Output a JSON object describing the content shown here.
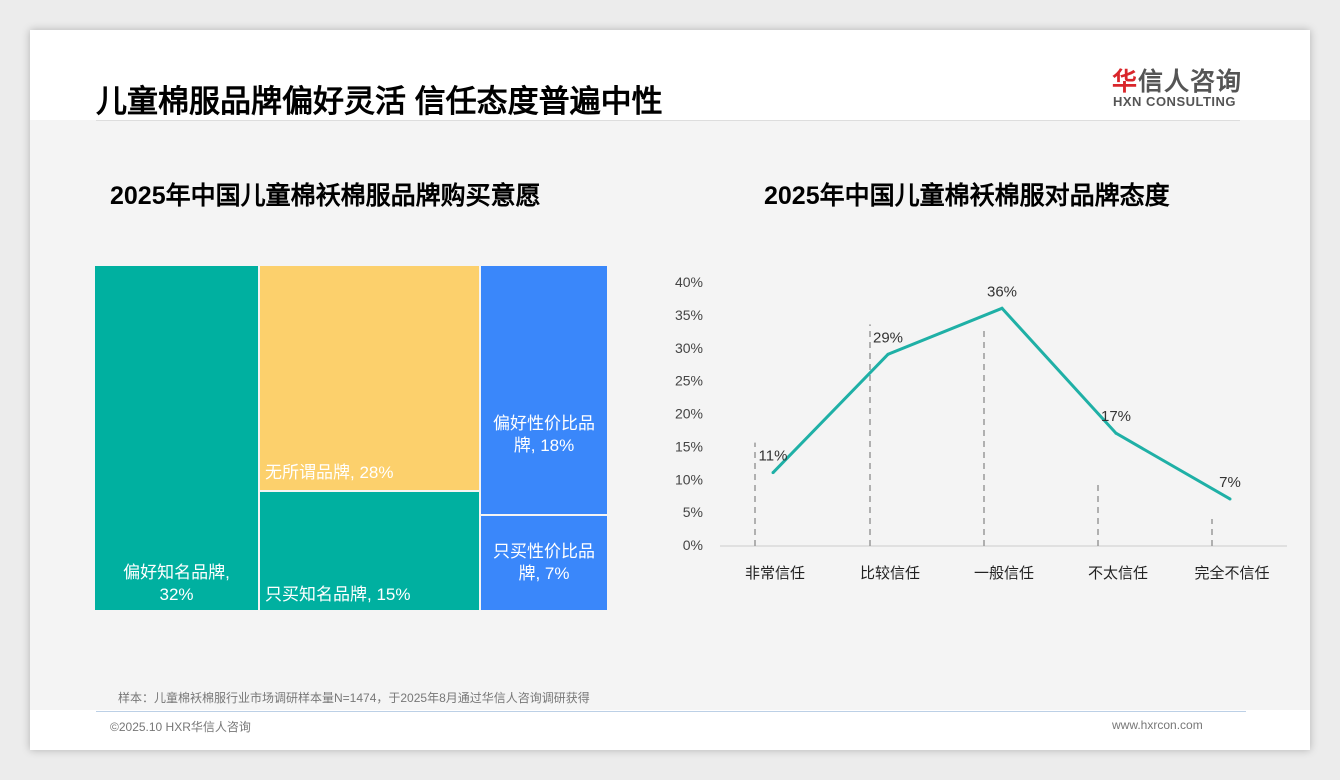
{
  "header": {
    "title": "儿童棉服品牌偏好灵活 信任态度普遍中性",
    "logo_cn_red": "华",
    "logo_cn": "信人咨询",
    "logo_en": "HXN CONSULTING"
  },
  "chart_data": [
    {
      "type": "treemap",
      "title": "2025年中国儿童棉袄棉服品牌购买意愿",
      "unit": "%",
      "items": [
        {
          "label": "偏好知名品牌, 32%",
          "name": "偏好知名品牌",
          "value": 32,
          "color": "#00b0a0"
        },
        {
          "label": "无所谓品牌, 28%",
          "name": "无所谓品牌",
          "value": 28,
          "color": "#fcd06c"
        },
        {
          "label": "只买知名品牌, 15%",
          "name": "只买知名品牌",
          "value": 15,
          "color": "#00b0a0"
        },
        {
          "label": "偏好性价比品牌, 18%",
          "name": "偏好性价比品牌",
          "value": 18,
          "color": "#3a87fa"
        },
        {
          "label": "只买性价比品牌, 7%",
          "name": "只买性价比品牌",
          "value": 7,
          "color": "#3a87fa"
        }
      ]
    },
    {
      "type": "line",
      "title": "2025年中国儿童棉袄棉服对品牌态度",
      "categories": [
        "非常信任",
        "比较信任",
        "一般信任",
        "不太信任",
        "完全不信任"
      ],
      "values": [
        11,
        29,
        36,
        17,
        7
      ],
      "labels": [
        "11%",
        "29%",
        "36%",
        "17%",
        "7%"
      ],
      "ylim": [
        0,
        40
      ],
      "yticks": [
        "0%",
        "5%",
        "10%",
        "15%",
        "20%",
        "25%",
        "30%",
        "35%",
        "40%"
      ],
      "color": "#1fb0a6"
    }
  ],
  "footer": {
    "note": "样本：儿童棉袄棉服行业市场调研样本量N=1474，于2025年8月通过华信人咨询调研获得",
    "copyright": "©2025.10 HXR华信人咨询",
    "url": "www.hxrcon.com"
  }
}
